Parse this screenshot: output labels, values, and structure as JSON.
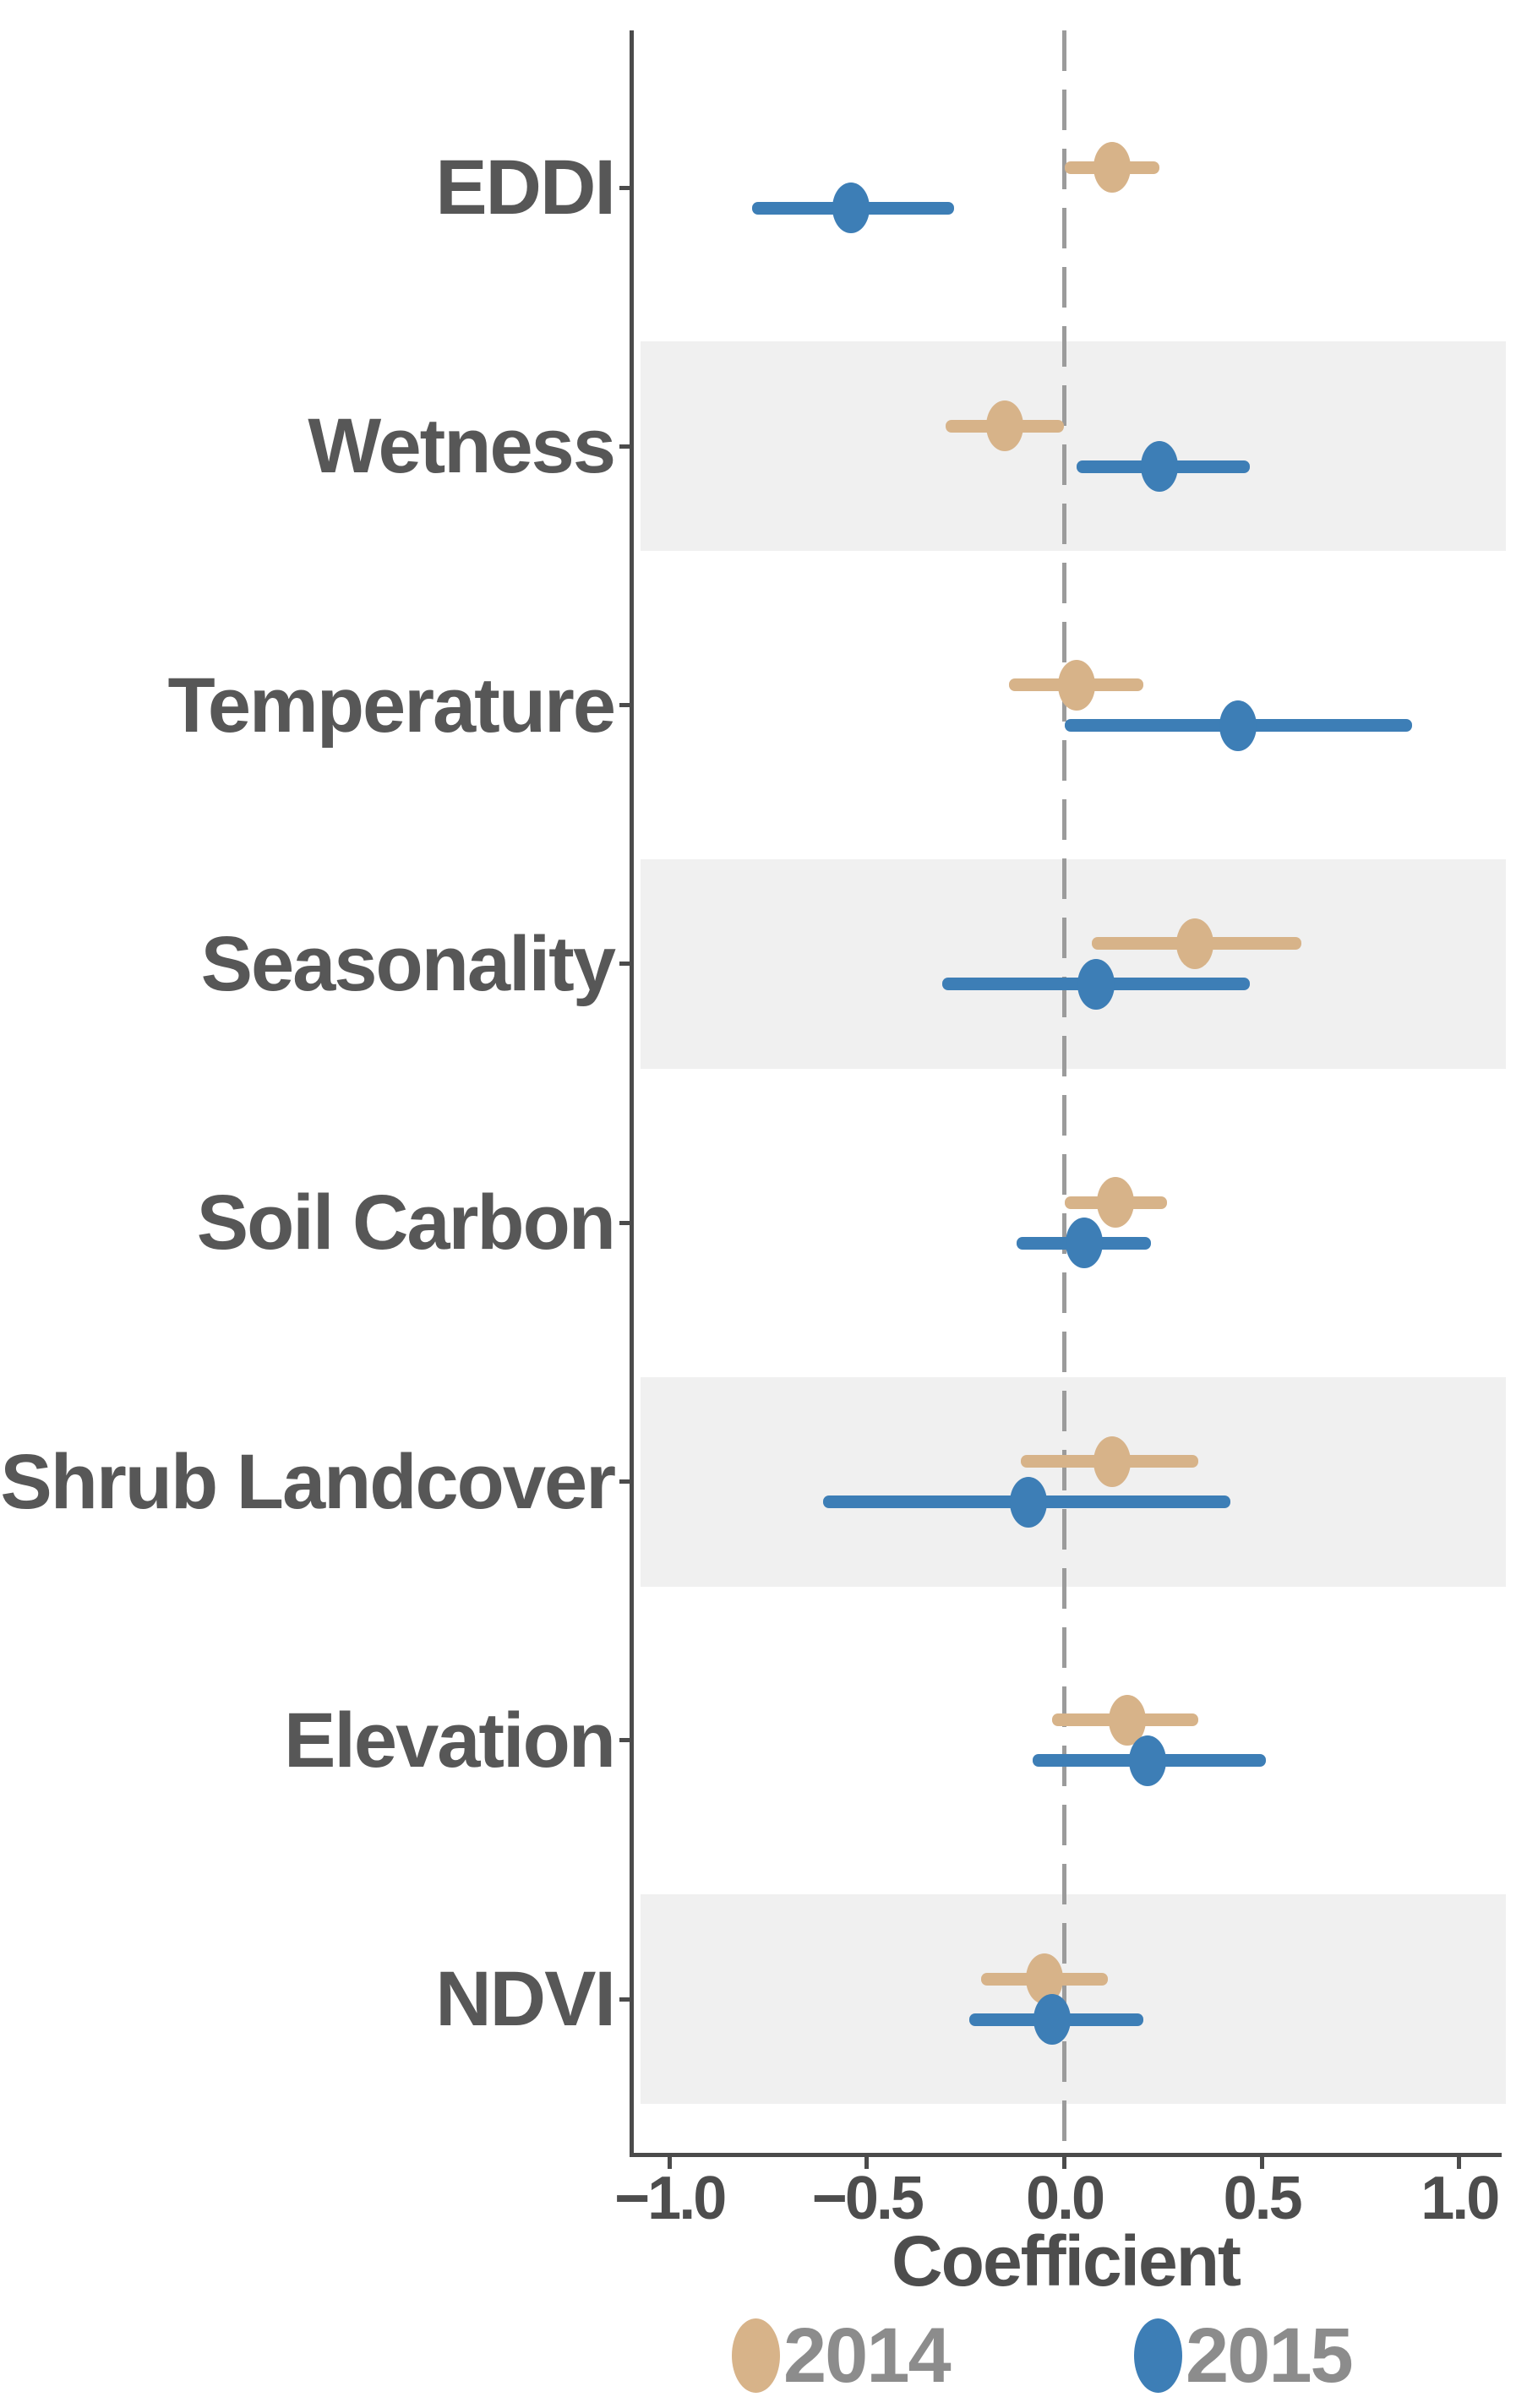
{
  "chart_data": {
    "type": "scatter",
    "subtype": "dot-and-whisker coefficient (forest) plot",
    "title": "",
    "xlabel": "Coefficient",
    "ylabel": "",
    "xlim": [
      -1.1,
      1.11
    ],
    "grid": "off",
    "legend_position": "bottom",
    "zero_reference_line": 0.0,
    "x_ticks": [
      {
        "value": -1.0,
        "label": "−1.0"
      },
      {
        "value": -0.5,
        "label": "−0.5"
      },
      {
        "value": 0.0,
        "label": "0.0"
      },
      {
        "value": 0.5,
        "label": "0.5"
      },
      {
        "value": 1.0,
        "label": "1.0"
      }
    ],
    "categories": [
      "EDDI",
      "Wetness",
      "Temperature",
      "Seasonality",
      "Soil Carbon",
      "Shrub Landcover",
      "Elevation",
      "NDVI"
    ],
    "shaded_categories": [
      "Wetness",
      "Seasonality",
      "Shrub Landcover",
      "NDVI"
    ],
    "series": [
      {
        "name": "2014",
        "color": "#D7B389",
        "estimates": [
          0.12,
          -0.15,
          0.03,
          0.33,
          0.13,
          0.12,
          0.16,
          -0.05
        ],
        "lower": [
          0.0,
          -0.3,
          -0.14,
          0.07,
          0.0,
          -0.11,
          -0.03,
          -0.21
        ],
        "upper": [
          0.24,
          0.0,
          0.2,
          0.6,
          0.26,
          0.34,
          0.34,
          0.11
        ]
      },
      {
        "name": "2015",
        "color": "#3D7EB6",
        "estimates": [
          -0.54,
          0.24,
          0.44,
          0.08,
          0.05,
          -0.09,
          0.21,
          -0.03
        ],
        "lower": [
          -0.79,
          0.03,
          0.0,
          -0.31,
          -0.12,
          -0.61,
          -0.08,
          -0.24
        ],
        "upper": [
          -0.28,
          0.47,
          0.88,
          0.47,
          0.22,
          0.42,
          0.51,
          0.2
        ]
      }
    ]
  },
  "legend": [
    {
      "label": "2014",
      "color": "#D7B389"
    },
    {
      "label": "2015",
      "color": "#3D7EB6"
    }
  ],
  "colors": {
    "background": "#FFFFFF",
    "band": "#F0F0F0",
    "axis": "#4B4B4B",
    "zero_line": "#9B9B9B",
    "category_label": "#575757",
    "tick_label": "#4D4D4D",
    "axis_title": "#4D4D4D",
    "legend_text": "#8C8C8C",
    "series_2014": "#D7B389",
    "series_2015": "#3D7EB6"
  }
}
